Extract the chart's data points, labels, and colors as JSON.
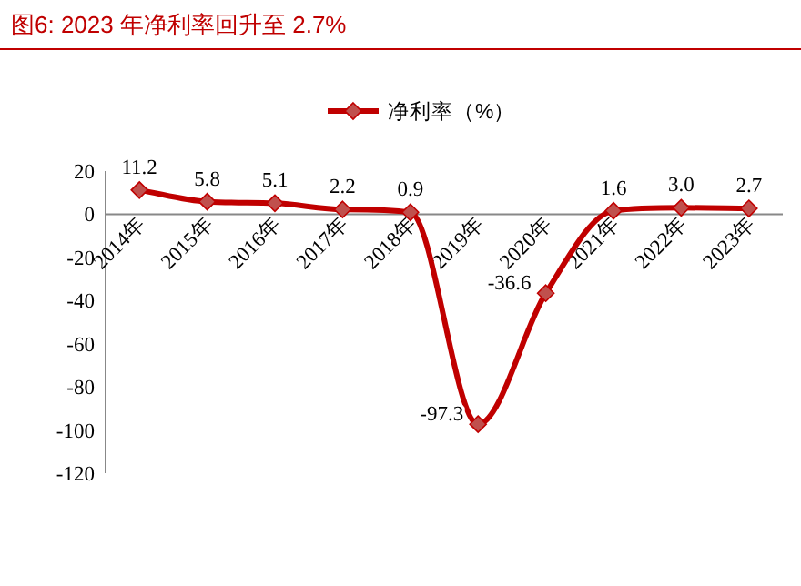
{
  "chart_data": {
    "type": "line",
    "title": "图6:   2023 年净利率回升至 2.7%",
    "categories": [
      "2014年",
      "2015年",
      "2016年",
      "2017年",
      "2018年",
      "2019年",
      "2020年",
      "2021年",
      "2022年",
      "2023年"
    ],
    "series": [
      {
        "name": "净利率（%）",
        "color": "#c00000",
        "values": [
          11.2,
          5.8,
          5.1,
          2.2,
          0.9,
          -97.3,
          -36.6,
          1.6,
          3.0,
          2.7
        ],
        "value_labels": [
          "11.2",
          "5.8",
          "5.1",
          "2.2",
          "0.9",
          "-97.3",
          "-36.6",
          "1.6",
          "3.0",
          "2.7"
        ]
      }
    ],
    "ylim": [
      -120,
      20
    ],
    "yticks": [
      -120,
      -100,
      -80,
      -60,
      -40,
      -20,
      0,
      20
    ],
    "marker": "diamond",
    "legend": "top",
    "grid": false
  }
}
